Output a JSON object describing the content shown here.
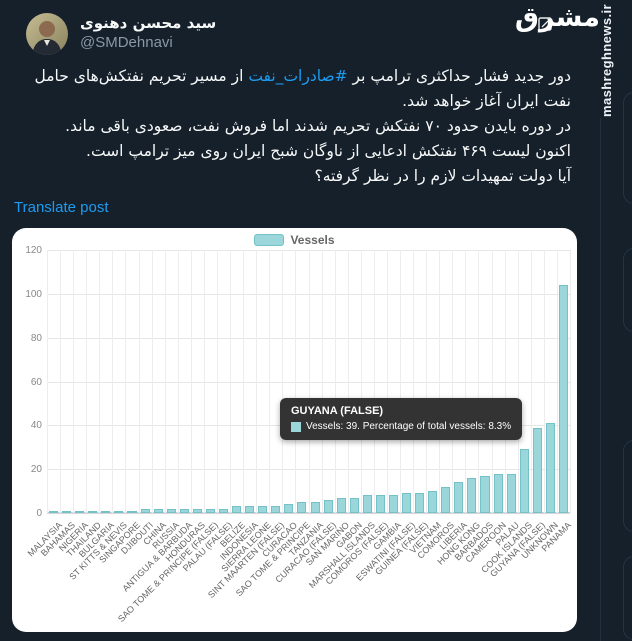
{
  "header": {
    "display_name": "سید محسن دهنوی",
    "handle": "@SMDehnavi"
  },
  "watermark": {
    "logo": "مشرق",
    "site": "mashreghnews.ir"
  },
  "tweet": {
    "p1_pre": "دور جدید فشار حداکثری ترامپ بر ",
    "hashtag": "#صادرات_نفت",
    "p1_post": " از مسیر تحریم نفتکش‌های حامل نفت ایران آغاز خواهد شد.",
    "p2": "در دوره بایدن حدود ۷۰ نفتکش تحریم شدند اما فروش نفت، صعودی باقی ماند.",
    "p3": "اکنون لیست ۴۶۹ نفتکش ادعایی از ناوگان شبح ایران روی میز ترامپ است.",
    "p4": "آیا دولت تمهیدات لازم را در نظر گرفته؟",
    "translate_label": "Translate post"
  },
  "chart_data": {
    "type": "bar",
    "title": "",
    "legend_label": "Vessels",
    "legend_position": "top-center",
    "grid": true,
    "ylim": [
      0,
      120
    ],
    "yticks": [
      0,
      20,
      40,
      60,
      80,
      100,
      120
    ],
    "categories": [
      "MALAYSIA",
      "BAHAMAS",
      "NIGERIA",
      "THAILAND",
      "BULGARIA",
      "ST KITTS & NEVIS",
      "SINGAPORE",
      "DJIBOUTI",
      "CHINA",
      "RUSSIA",
      "ANTIGUA & BARBUDA",
      "HONDURAS",
      "SAO TOME & PRINCIPE (FALSE)",
      "PALAU (FALSE)",
      "BELIZE",
      "INDONESIA",
      "SIERRA LEONE",
      "SINT MAARTEN (FALSE)",
      "CURACAO",
      "SAO TOME & PRINCIPE",
      "TANZANIA",
      "CURACAO (FALSE)",
      "SAN MARINO",
      "GABON",
      "MARSHALL ISLANDS",
      "COMOROS (FALSE)",
      "GAMBIA",
      "ESWATINI (FALSE)",
      "GUINEA (FALSE)",
      "VIETNAM",
      "COMOROS",
      "LIBERIA",
      "HONG KONG",
      "BARBADOS",
      "CAMEROON",
      "PALAU",
      "COOK ISLANDS",
      "GUYANA (FALSE)",
      "UNKNOWN",
      "PANAMA"
    ],
    "values": [
      1,
      1,
      1,
      1,
      1,
      1,
      1,
      2,
      2,
      2,
      2,
      2,
      2,
      2,
      3,
      3,
      3,
      3,
      4,
      5,
      5,
      6,
      7,
      7,
      8,
      8,
      8,
      9,
      9,
      10,
      12,
      14,
      16,
      17,
      18,
      18,
      29,
      39,
      41,
      104
    ],
    "tooltip": {
      "title": "GUYANA (FALSE)",
      "body": "Vessels: 39. Percentage of total vessels: 8.3%",
      "highlighted_category": "GUYANA (FALSE)",
      "highlighted_value": 39,
      "highlighted_percent": "8.3%"
    },
    "colors": {
      "bar_fill": "#9ad6da",
      "bar_border": "#74c2c8",
      "accent_link": "#1d9bf0",
      "page_bg": "#15202b",
      "card_bg": "#ffffff"
    }
  }
}
